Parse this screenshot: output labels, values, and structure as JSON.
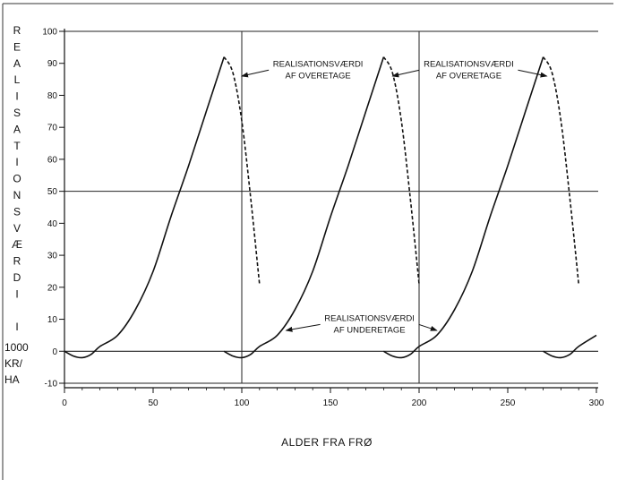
{
  "chart_data": {
    "type": "line",
    "title": "",
    "xlabel": "ALDER FRA FRØ",
    "ylabel_chars": [
      "R",
      "E",
      "A",
      "L",
      "I",
      "S",
      "A",
      "T",
      "I",
      "O",
      "N",
      "S",
      "V",
      "Æ",
      "R",
      "D",
      "I",
      "",
      "I"
    ],
    "ylabel_unit_lines": [
      "1000",
      "KR/",
      "HA"
    ],
    "xlim": [
      0,
      300
    ],
    "ylim": [
      -10,
      100
    ],
    "x_ticks": [
      0,
      50,
      100,
      150,
      200,
      250,
      300
    ],
    "y_ticks": [
      -10,
      0,
      10,
      20,
      30,
      40,
      50,
      60,
      70,
      80,
      90,
      100
    ],
    "grid": {
      "horizontal": [
        0,
        50,
        100,
        -10
      ],
      "vertical": [
        100,
        200
      ]
    },
    "series": [
      {
        "style": "solid",
        "x": [
          0,
          5,
          10,
          15,
          20,
          30,
          40,
          50,
          60,
          70,
          80,
          90
        ],
        "y": [
          0,
          -1.5,
          -2,
          -1,
          1.5,
          5,
          13,
          25,
          42,
          58,
          75,
          92
        ]
      },
      {
        "style": "dashed",
        "x": [
          90,
          95,
          100,
          105,
          110
        ],
        "y": [
          92,
          87,
          72,
          48,
          21
        ]
      },
      {
        "style": "solid",
        "x": [
          90,
          95,
          100,
          105,
          110,
          120,
          130,
          140,
          150,
          160,
          170,
          180
        ],
        "y": [
          0,
          -1.5,
          -2,
          -1,
          1.5,
          5,
          13,
          25,
          42,
          58,
          75,
          92
        ]
      },
      {
        "style": "dashed",
        "x": [
          180,
          185,
          190,
          195,
          200
        ],
        "y": [
          92,
          87,
          72,
          48,
          21
        ]
      },
      {
        "style": "solid",
        "x": [
          180,
          185,
          190,
          195,
          200,
          210,
          220,
          230,
          240,
          250,
          260,
          270
        ],
        "y": [
          0,
          -1.5,
          -2,
          -1,
          1.5,
          5,
          13,
          25,
          42,
          58,
          75,
          92
        ]
      },
      {
        "style": "dashed",
        "x": [
          270,
          275,
          280,
          285,
          290
        ],
        "y": [
          92,
          87,
          72,
          48,
          21
        ]
      },
      {
        "style": "solid",
        "x": [
          270,
          275,
          280,
          285,
          290,
          300
        ],
        "y": [
          0,
          -1.5,
          -2,
          -1,
          1.5,
          5
        ]
      }
    ],
    "annotations": [
      {
        "lines": [
          "REALISATIONSVÆRDI",
          "AF OVERETAGE"
        ],
        "arrow_left_to": [
          100,
          86
        ],
        "arrow_right_to": []
      },
      {
        "lines": [
          "REALISATIONSVÆRDI",
          "AF OVERETAGE"
        ],
        "arrow_left_to": [
          185,
          86
        ],
        "arrow_right_to": [
          272,
          86
        ]
      },
      {
        "lines": [
          "REALISATIONSVÆRDI",
          "AF UNDERETAGE"
        ],
        "arrow_left_to": [
          125,
          6.5
        ],
        "arrow_right_to": [
          210,
          6.5
        ]
      }
    ]
  }
}
